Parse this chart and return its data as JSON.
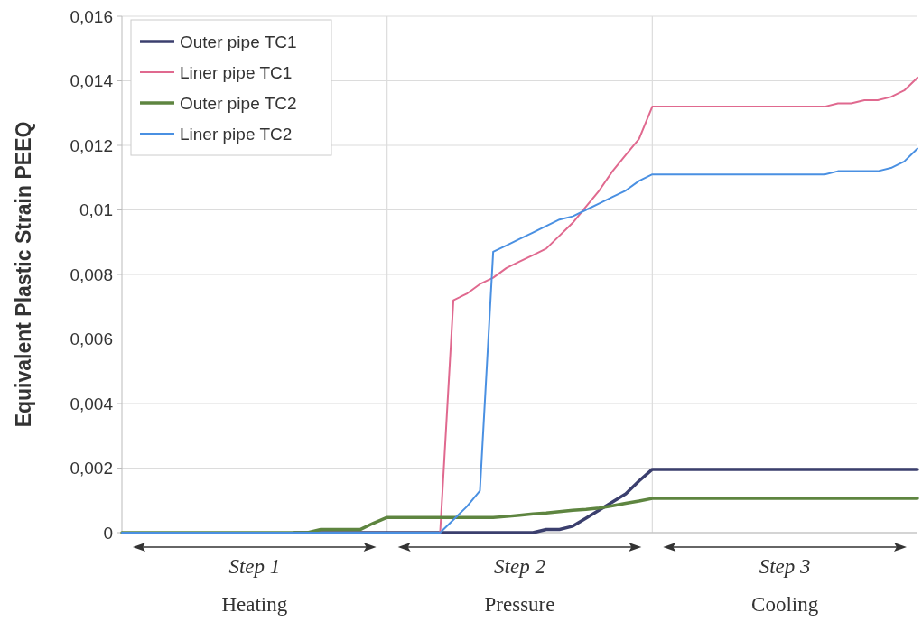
{
  "chart_data": {
    "type": "line",
    "ylabel": "Equivalent Plastic Strain PEEQ",
    "categories": [
      null,
      null,
      null,
      null,
      null,
      null,
      null,
      null,
      null,
      null,
      null,
      null,
      null,
      null,
      null,
      null,
      null,
      null,
      null,
      null,
      null,
      null,
      null,
      null,
      null,
      null,
      null,
      null,
      null,
      null,
      null,
      null,
      null,
      null,
      null,
      null,
      null,
      null,
      null,
      null,
      null,
      null,
      null,
      null,
      null,
      null,
      null,
      null,
      null,
      null,
      null,
      null,
      null,
      null,
      null,
      null,
      null,
      null,
      null,
      null,
      null
    ],
    "ylim": [
      0,
      0.016
    ],
    "yticks": [
      0,
      {
        "value": 0.002,
        "label": "0,002"
      },
      {
        "value": 0.004,
        "label": "0,004"
      },
      {
        "value": 0.006,
        "label": "0,006"
      },
      {
        "value": 0.008,
        "label": "0,008"
      },
      {
        "value": 0.01,
        "label": "0,01"
      },
      {
        "value": 0.012,
        "label": "0,012"
      },
      {
        "value": 0.014,
        "label": "0,014"
      },
      {
        "value": 0.016,
        "label": "0,016"
      }
    ],
    "grid": true,
    "legend": "top left",
    "tick_labels": "y",
    "annotations": [
      "Step 1",
      "Step 2",
      "Step 3",
      "Heating",
      "Pressure",
      "Cooling"
    ],
    "series": [
      {
        "name": "Outer pipe TC1",
        "color": "#3b3f6e",
        "values": [
          null,
          null,
          null,
          null,
          null,
          null,
          null,
          null,
          null,
          null,
          null,
          null,
          null,
          0,
          0,
          0,
          0,
          0,
          0,
          0,
          0,
          0,
          0,
          0,
          0,
          0,
          0,
          0,
          0,
          0,
          0,
          0,
          0.0001,
          0.0001,
          0.0002,
          0.00045,
          0.0007,
          0.00095,
          0.0012,
          0.0016,
          0.00196,
          0.00196,
          0.00196,
          0.00196,
          0.00196,
          0.00196,
          0.00196,
          0.00196,
          0.00196,
          0.00196,
          0.00196,
          0.00196,
          0.00196,
          0.00196,
          0.00196,
          0.00196,
          0.00196,
          0.00196,
          0.00196,
          0.00196,
          0.00196
        ]
      },
      {
        "name": "Liner pipe TC1",
        "color": "#e0698f",
        "values": [
          null,
          null,
          null,
          null,
          null,
          null,
          null,
          null,
          null,
          null,
          null,
          null,
          null,
          null,
          null,
          null,
          null,
          null,
          null,
          null,
          null,
          null,
          null,
          0,
          0,
          0.0072,
          0.0074,
          0.0077,
          0.0079,
          0.0082,
          0.0084,
          0.0086,
          0.0088,
          0.0092,
          0.0096,
          0.0101,
          0.0106,
          0.0112,
          0.0117,
          0.0122,
          0.0132,
          0.0132,
          0.0132,
          0.0132,
          0.0132,
          0.0132,
          0.0132,
          0.0132,
          0.0132,
          0.0132,
          0.0132,
          0.0132,
          0.0132,
          0.0132,
          0.0133,
          0.0133,
          0.0134,
          0.0134,
          0.0135,
          0.0137,
          0.0141
        ]
      },
      {
        "name": "Outer pipe TC2",
        "color": "#5e8540",
        "values": [
          0,
          0,
          0,
          0,
          0,
          0,
          0,
          0,
          0,
          0,
          0,
          0,
          0,
          0,
          0,
          0.0001,
          0.0001,
          0.0001,
          0.0001,
          0.0003,
          0.00047,
          0.00047,
          0.00047,
          0.00047,
          0.00047,
          0.00047,
          0.00047,
          0.00047,
          0.00047,
          0.0005,
          0.00054,
          0.00058,
          0.00061,
          0.00065,
          0.00069,
          0.00072,
          0.00076,
          0.00083,
          0.00091,
          0.00098,
          0.00106,
          0.00106,
          0.00106,
          0.00106,
          0.00106,
          0.00106,
          0.00106,
          0.00106,
          0.00106,
          0.00106,
          0.00106,
          0.00106,
          0.00106,
          0.00106,
          0.00106,
          0.00106,
          0.00106,
          0.00106,
          0.00106,
          0.00106,
          0.00106
        ]
      },
      {
        "name": "Liner pipe TC2",
        "color": "#4a90e2",
        "values": [
          0,
          0,
          0,
          0,
          0,
          0,
          0,
          0,
          0,
          0,
          0,
          0,
          0,
          0,
          0,
          0,
          0,
          0,
          0,
          0,
          0,
          0,
          0,
          0,
          0,
          0.0004,
          0.0008,
          0.0013,
          0.0087,
          0.0089,
          0.0091,
          0.0093,
          0.0095,
          0.0097,
          0.0098,
          0.01,
          0.0102,
          0.0104,
          0.0106,
          0.0109,
          0.0111,
          0.0111,
          0.0111,
          0.0111,
          0.0111,
          0.0111,
          0.0111,
          0.0111,
          0.0111,
          0.0111,
          0.0111,
          0.0111,
          0.0111,
          0.0111,
          0.0112,
          0.0112,
          0.0112,
          0.0112,
          0.0113,
          0.0115,
          0.0119
        ]
      }
    ]
  }
}
